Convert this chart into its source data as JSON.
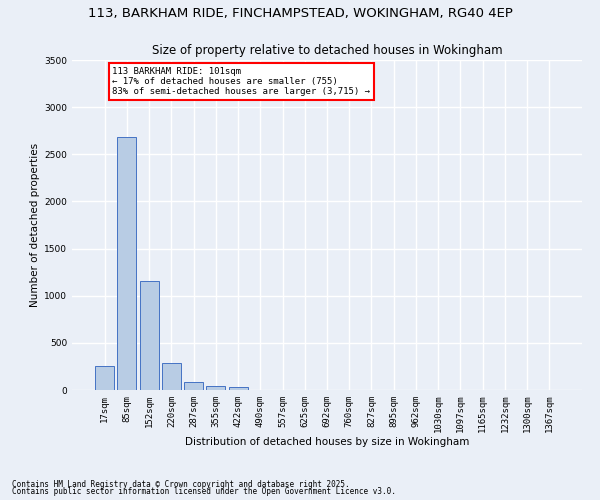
{
  "title_line1": "113, BARKHAM RIDE, FINCHAMPSTEAD, WOKINGHAM, RG40 4EP",
  "title_line2": "Size of property relative to detached houses in Wokingham",
  "xlabel": "Distribution of detached houses by size in Wokingham",
  "ylabel": "Number of detached properties",
  "categories": [
    "17sqm",
    "85sqm",
    "152sqm",
    "220sqm",
    "287sqm",
    "355sqm",
    "422sqm",
    "490sqm",
    "557sqm",
    "625sqm",
    "692sqm",
    "760sqm",
    "827sqm",
    "895sqm",
    "962sqm",
    "1030sqm",
    "1097sqm",
    "1165sqm",
    "1232sqm",
    "1300sqm",
    "1367sqm"
  ],
  "values": [
    255,
    2680,
    1160,
    290,
    90,
    45,
    30,
    0,
    0,
    0,
    0,
    0,
    0,
    0,
    0,
    0,
    0,
    0,
    0,
    0,
    0
  ],
  "bar_color": "#b8cce4",
  "bar_edge_color": "#4472c4",
  "annotation_text": "113 BARKHAM RIDE: 101sqm\n← 17% of detached houses are smaller (755)\n83% of semi-detached houses are larger (3,715) →",
  "annotation_box_color": "#ffffff",
  "annotation_box_edge_color": "#ff0000",
  "ylim": [
    0,
    3500
  ],
  "yticks": [
    0,
    500,
    1000,
    1500,
    2000,
    2500,
    3000,
    3500
  ],
  "background_color": "#eaeff7",
  "grid_color": "#ffffff",
  "footnote1": "Contains HM Land Registry data © Crown copyright and database right 2025.",
  "footnote2": "Contains public sector information licensed under the Open Government Licence v3.0.",
  "title_fontsize": 9.5,
  "subtitle_fontsize": 8.5,
  "annotation_fontsize": 6.5,
  "axis_label_fontsize": 7.5,
  "tick_fontsize": 6.5,
  "footnote_fontsize": 5.5
}
